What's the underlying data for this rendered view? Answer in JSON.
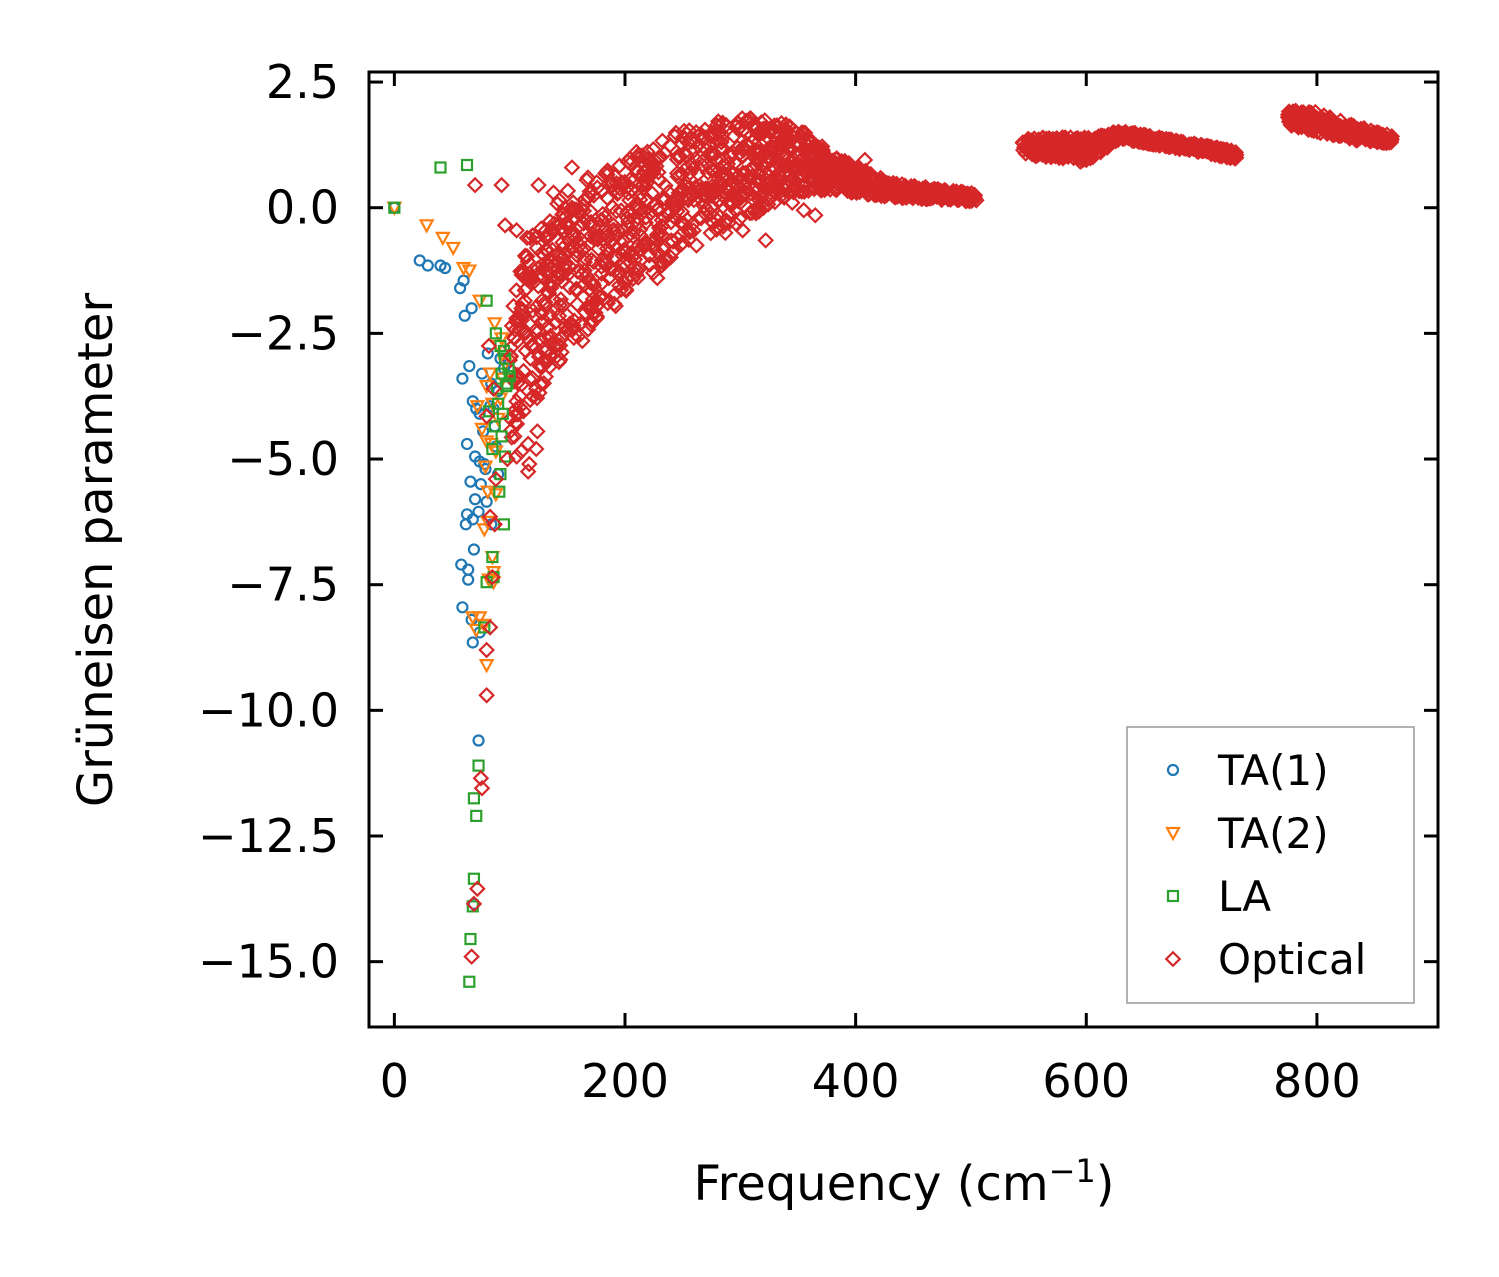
{
  "chart_data": {
    "type": "scatter",
    "title": "",
    "xlabel": "Frequency (cm",
    "xlabel_sup": "−1",
    "xlabel_end": ")",
    "ylabel": "Grüneisen parameter",
    "xlim": [
      -22,
      905
    ],
    "ylim": [
      -16.3,
      2.7
    ],
    "xticks": [
      0,
      200,
      400,
      600,
      800
    ],
    "xtick_labels": [
      "0",
      "200",
      "400",
      "600",
      "800"
    ],
    "yticks": [
      2.5,
      0.0,
      -2.5,
      -5.0,
      -7.5,
      -10.0,
      -12.5,
      -15.0
    ],
    "ytick_labels": [
      "2.5",
      "0.0",
      "−2.5",
      "−5.0",
      "−7.5",
      "−10.0",
      "−12.5",
      "−15.0"
    ],
    "grid": false,
    "legend_position": "bottom-right",
    "series": [
      {
        "name": "TA(1)",
        "marker": "circle",
        "color": "#1f77b4",
        "points": [
          [
            0,
            0
          ],
          [
            22,
            -1.05
          ],
          [
            29,
            -1.15
          ],
          [
            40,
            -1.15
          ],
          [
            44,
            -1.2
          ],
          [
            57,
            -1.6
          ],
          [
            60,
            -1.45
          ],
          [
            61,
            -2.15
          ],
          [
            67,
            -2.0
          ],
          [
            59,
            -3.4
          ],
          [
            65,
            -3.15
          ],
          [
            68,
            -3.85
          ],
          [
            71,
            -4.0
          ],
          [
            74,
            -4.1
          ],
          [
            76,
            -3.3
          ],
          [
            81,
            -2.9
          ],
          [
            84,
            -3.5
          ],
          [
            63,
            -4.7
          ],
          [
            70,
            -4.95
          ],
          [
            74,
            -5.05
          ],
          [
            78,
            -5.1
          ],
          [
            79,
            -5.2
          ],
          [
            66,
            -5.45
          ],
          [
            75,
            -5.5
          ],
          [
            80,
            -5.85
          ],
          [
            70,
            -5.8
          ],
          [
            73,
            -6.05
          ],
          [
            63,
            -6.1
          ],
          [
            68,
            -6.2
          ],
          [
            62,
            -6.3
          ],
          [
            69,
            -6.8
          ],
          [
            58,
            -7.1
          ],
          [
            64,
            -7.2
          ],
          [
            64,
            -7.4
          ],
          [
            59,
            -7.95
          ],
          [
            67,
            -8.2
          ],
          [
            68,
            -8.65
          ],
          [
            74,
            -8.45
          ],
          [
            73,
            -10.6
          ],
          [
            69,
            -13.85
          ],
          [
            87,
            -4.35
          ],
          [
            90,
            -5.3
          ],
          [
            84,
            -6.3
          ],
          [
            77,
            -4.45
          ],
          [
            83,
            -3.95
          ],
          [
            86,
            -4.0
          ],
          [
            90,
            -3.65
          ],
          [
            92,
            -3.0
          ],
          [
            95,
            -3.2
          ],
          [
            88,
            -4.75
          ]
        ]
      },
      {
        "name": "TA(2)",
        "marker": "triangle",
        "color": "#ff7f0e",
        "points": [
          [
            0,
            0
          ],
          [
            28,
            -0.35
          ],
          [
            42,
            -0.6
          ],
          [
            51,
            -0.8
          ],
          [
            60,
            -1.2
          ],
          [
            65,
            -1.25
          ],
          [
            74,
            -1.85
          ],
          [
            87,
            -2.3
          ],
          [
            90,
            -2.75
          ],
          [
            83,
            -3.3
          ],
          [
            80,
            -3.55
          ],
          [
            72,
            -3.95
          ],
          [
            76,
            -4.4
          ],
          [
            80,
            -4.65
          ],
          [
            84,
            -4.7
          ],
          [
            88,
            -4.85
          ],
          [
            79,
            -5.15
          ],
          [
            81,
            -5.65
          ],
          [
            88,
            -5.7
          ],
          [
            78,
            -6.4
          ],
          [
            81,
            -6.25
          ],
          [
            86,
            -7.25
          ],
          [
            82,
            -7.4
          ],
          [
            86,
            -7.45
          ],
          [
            68,
            -8.15
          ],
          [
            74,
            -8.15
          ],
          [
            80,
            -9.1
          ],
          [
            78,
            -8.3
          ],
          [
            71,
            -8.4
          ],
          [
            85,
            -6.95
          ],
          [
            90,
            -4.2
          ],
          [
            92,
            -3.8
          ],
          [
            85,
            -3.9
          ],
          [
            94,
            -3.4
          ],
          [
            93,
            -2.6
          ],
          [
            96,
            -3.1
          ]
        ]
      },
      {
        "name": "LA",
        "marker": "square",
        "color": "#2ca02c",
        "points": [
          [
            0,
            0
          ],
          [
            40,
            0.8
          ],
          [
            63,
            0.85
          ],
          [
            80,
            -1.85
          ],
          [
            88,
            -2.5
          ],
          [
            92,
            -2.75
          ],
          [
            96,
            -3.0
          ],
          [
            99,
            -3.2
          ],
          [
            93,
            -3.3
          ],
          [
            97,
            -3.55
          ],
          [
            90,
            -3.9
          ],
          [
            82,
            -4.05
          ],
          [
            87,
            -4.35
          ],
          [
            93,
            -4.55
          ],
          [
            96,
            -4.95
          ],
          [
            92,
            -5.3
          ],
          [
            91,
            -5.65
          ],
          [
            95,
            -6.3
          ],
          [
            85,
            -6.95
          ],
          [
            80,
            -7.45
          ],
          [
            86,
            -7.35
          ],
          [
            78,
            -8.35
          ],
          [
            73,
            -11.1
          ],
          [
            69,
            -11.75
          ],
          [
            71,
            -12.1
          ],
          [
            69,
            -13.35
          ],
          [
            68,
            -13.9
          ],
          [
            66,
            -14.55
          ],
          [
            65,
            -15.4
          ],
          [
            98,
            -3.5
          ],
          [
            100,
            -3.35
          ],
          [
            95,
            -2.85
          ],
          [
            89,
            -3.6
          ],
          [
            94,
            -4.1
          ],
          [
            85,
            -4.8
          ]
        ]
      },
      {
        "name": "Optical",
        "marker": "diamond",
        "color": "#d62728",
        "points": [
          [
            70,
            0.45
          ],
          [
            93,
            0.45
          ],
          [
            154,
            0.8
          ],
          [
            125,
            0.45
          ],
          [
            106,
            -0.45
          ],
          [
            96,
            -0.35
          ],
          [
            115,
            -0.6
          ],
          [
            138,
            0.3
          ],
          [
            143,
            0.15
          ],
          [
            148,
            -0.2
          ],
          [
            164,
            0.05
          ],
          [
            176,
            0.4
          ],
          [
            168,
            0.2
          ],
          [
            82,
            -2.75
          ],
          [
            86,
            -3.6
          ],
          [
            80,
            -4.15
          ],
          [
            88,
            -5.4
          ],
          [
            83,
            -6.15
          ],
          [
            87,
            -6.3
          ],
          [
            85,
            -7.35
          ],
          [
            83,
            -8.35
          ],
          [
            80,
            -8.8
          ],
          [
            80,
            -9.7
          ],
          [
            75,
            -11.35
          ],
          [
            76,
            -11.55
          ],
          [
            72,
            -13.55
          ],
          [
            69,
            -13.85
          ],
          [
            67,
            -14.9
          ],
          [
            98,
            -5.0
          ],
          [
            106,
            -4.95
          ],
          [
            110,
            -4.85
          ],
          [
            116,
            -4.7
          ],
          [
            123,
            -4.8
          ],
          [
            117,
            -5.1
          ],
          [
            104,
            -4.55
          ],
          [
            112,
            -4.05
          ],
          [
            120,
            -3.75
          ],
          [
            127,
            -3.5
          ],
          [
            112,
            -3.25
          ],
          [
            118,
            -3.0
          ],
          [
            104,
            -2.6
          ],
          [
            108,
            -2.2
          ],
          [
            114,
            -2.85
          ],
          [
            122,
            -2.45
          ],
          [
            130,
            -2.25
          ],
          [
            135,
            -2.6
          ],
          [
            126,
            -3.15
          ],
          [
            141,
            -2.95
          ],
          [
            148,
            -2.5
          ],
          [
            156,
            -2.25
          ],
          [
            163,
            -2.65
          ],
          [
            171,
            -1.95
          ],
          [
            185,
            -1.9
          ],
          [
            195,
            -1.55
          ],
          [
            208,
            -1.2
          ],
          [
            221,
            -0.95
          ],
          [
            228,
            -1.4
          ],
          [
            240,
            -0.65
          ],
          [
            255,
            -0.45
          ],
          [
            265,
            -0.2
          ],
          [
            287,
            -0.5
          ],
          [
            302,
            -0.45
          ],
          [
            322,
            -0.65
          ],
          [
            345,
            0.1
          ],
          [
            355,
            -0.05
          ],
          [
            365,
            -0.15
          ],
          [
            327,
            0.55
          ],
          [
            318,
            0.25
          ],
          [
            300,
            0.1
          ],
          [
            278,
            0.2
          ],
          [
            258,
            0.25
          ],
          [
            245,
            0.05
          ],
          [
            232,
            -0.25
          ],
          [
            218,
            -0.3
          ],
          [
            212,
            -0.75
          ],
          [
            198,
            -0.95
          ],
          [
            180,
            -1.05
          ],
          [
            165,
            -1.25
          ],
          [
            152,
            -1.3
          ],
          [
            136,
            -1.55
          ],
          [
            128,
            -1.85
          ],
          [
            120,
            -2.05
          ],
          [
            110,
            -2.15
          ],
          [
            102,
            -2.35
          ],
          [
            119,
            -1.45
          ],
          [
            132,
            -1.25
          ],
          [
            148,
            -0.95
          ],
          [
            161,
            -0.75
          ],
          [
            174,
            -0.55
          ],
          [
            190,
            -0.35
          ],
          [
            205,
            -0.15
          ],
          [
            225,
            0.05
          ],
          [
            250,
            0.35
          ],
          [
            272,
            0.7
          ],
          [
            285,
            0.6
          ],
          [
            298,
            0.45
          ],
          [
            310,
            0.75
          ],
          [
            330,
            1.2
          ],
          [
            340,
            1.45
          ],
          [
            348,
            1.5
          ],
          [
            356,
            0.7
          ],
          [
            370,
            0.45
          ],
          [
            388,
            0.7
          ],
          [
            396,
            0.65
          ],
          [
            408,
            0.95
          ],
          [
            415,
            0.55
          ],
          [
            425,
            0.35
          ],
          [
            440,
            0.3
          ],
          [
            462,
            0.25
          ],
          [
            485,
            0.25
          ],
          [
            500,
            0.2
          ],
          [
            545,
            1.3
          ],
          [
            558,
            1.2
          ],
          [
            566,
            1.05
          ],
          [
            578,
            1.15
          ],
          [
            590,
            1.35
          ],
          [
            596,
            1.05
          ],
          [
            600,
            0.95
          ],
          [
            612,
            1.25
          ],
          [
            628,
            1.45
          ],
          [
            640,
            1.45
          ],
          [
            660,
            1.35
          ],
          [
            680,
            1.25
          ],
          [
            700,
            1.15
          ],
          [
            715,
            1.1
          ],
          [
            730,
            1.05
          ],
          [
            778,
            1.85
          ],
          [
            790,
            1.8
          ],
          [
            800,
            1.6
          ],
          [
            810,
            1.55
          ],
          [
            820,
            1.5
          ],
          [
            835,
            1.45
          ],
          [
            850,
            1.4
          ],
          [
            862,
            1.35
          ],
          [
            116,
            -5.25
          ],
          [
            124,
            -4.45
          ],
          [
            109,
            -3.75
          ],
          [
            101,
            -2.95
          ],
          [
            141,
            -2.0
          ],
          [
            158,
            -1.65
          ],
          [
            186,
            -1.4
          ],
          [
            201,
            -1.65
          ],
          [
            236,
            -1.0
          ],
          [
            262,
            -0.75
          ],
          [
            280,
            -0.25
          ],
          [
            312,
            -0.05
          ],
          [
            338,
            0.2
          ],
          [
            373,
            0.35
          ],
          [
            392,
            0.55
          ],
          [
            453,
            0.35
          ]
        ]
      }
    ],
    "density_segments": [
      {
        "x": [
          100,
          150,
          200,
          250,
          300,
          345,
          380,
          430,
          480,
          505
        ],
        "y": [
          -2.3,
          -1.0,
          -0.3,
          0.2,
          0.5,
          1.0,
          0.7,
          0.35,
          0.25,
          0.2
        ],
        "spread": [
          [
            -2.4,
            1.2
          ],
          [
            -1.8,
            1.4
          ],
          [
            -1.5,
            1.3
          ],
          [
            -1.0,
            1.4
          ],
          [
            -0.8,
            1.3
          ],
          [
            -0.7,
            0.7
          ],
          [
            -0.35,
            0.35
          ],
          [
            -0.15,
            0.15
          ],
          [
            -0.1,
            0.1
          ],
          [
            -0.08,
            0.08
          ]
        ]
      },
      {
        "x": [
          545,
          600,
          630,
          680,
          730
        ],
        "y": [
          1.25,
          1.15,
          1.45,
          1.25,
          1.05
        ],
        "spread": [
          [
            -0.2,
            0.15
          ],
          [
            -0.25,
            0.25
          ],
          [
            -0.08,
            0.08
          ],
          [
            -0.08,
            0.08
          ],
          [
            -0.08,
            0.08
          ]
        ]
      },
      {
        "x": [
          775,
          800,
          830,
          865
        ],
        "y": [
          1.8,
          1.7,
          1.5,
          1.35
        ],
        "spread": [
          [
            -0.15,
            0.15
          ],
          [
            -0.2,
            0.2
          ],
          [
            -0.15,
            0.15
          ],
          [
            -0.08,
            0.08
          ]
        ]
      }
    ]
  }
}
